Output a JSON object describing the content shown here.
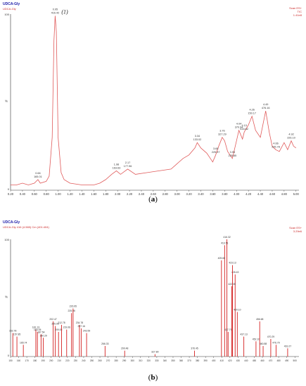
{
  "chart_data": [
    {
      "type": "line",
      "header": {
        "title": "UDCA-Gly",
        "subtitle": "UDCA-Gly",
        "right_lines": [
          "Scan ES+",
          "TIC",
          "1.41e8"
        ]
      },
      "ylabel": "%",
      "y_top_tick": "100",
      "y_zero_tick": "0",
      "xlim": [
        0.2,
        5.05
      ],
      "ylim": [
        0,
        100
      ],
      "x_ticks": [
        "0.20",
        "0.40",
        "0.60",
        "0.80",
        "1.00",
        "1.20",
        "1.40",
        "1.60",
        "1.80",
        "2.00",
        "2.20",
        "2.40",
        "2.60",
        "2.80",
        "3.00",
        "3.20",
        "3.40",
        "3.60",
        "3.80",
        "4.00",
        "4.20",
        "4.40",
        "4.60",
        "4.80",
        "5.00"
      ],
      "x_tick_values": [
        0.2,
        0.4,
        0.6,
        0.8,
        1.0,
        1.2,
        1.4,
        1.6,
        1.8,
        2.0,
        2.2,
        2.4,
        2.6,
        2.8,
        3.0,
        3.2,
        3.4,
        3.6,
        3.8,
        4.0,
        4.2,
        4.4,
        4.6,
        4.8,
        5.0
      ],
      "peak_marker": "(1)",
      "series": [
        {
          "color": "#e05a5a",
          "x": [
            0.2,
            0.3,
            0.4,
            0.5,
            0.6,
            0.66,
            0.7,
            0.8,
            0.85,
            0.9,
            0.93,
            0.95,
            0.97,
            1.0,
            1.05,
            1.1,
            1.2,
            1.4,
            1.6,
            1.7,
            1.8,
            1.9,
            1.98,
            2.05,
            2.17,
            2.3,
            2.5,
            2.7,
            2.9,
            3.0,
            3.1,
            3.2,
            3.3,
            3.34,
            3.4,
            3.5,
            3.6,
            3.65,
            3.7,
            3.76,
            3.8,
            3.85,
            3.93,
            4.0,
            4.04,
            4.1,
            4.13,
            4.2,
            4.26,
            4.32,
            4.4,
            4.49,
            4.55,
            4.6,
            4.66,
            4.72,
            4.8,
            4.86,
            4.92,
            4.96,
            5.0
          ],
          "values": [
            3,
            3,
            4,
            3,
            4,
            6,
            4,
            5,
            8,
            30,
            85,
            99,
            90,
            30,
            10,
            6,
            4,
            3,
            3,
            4,
            6,
            9,
            11,
            9,
            12,
            9,
            10,
            11,
            12,
            15,
            18,
            20,
            24,
            27,
            24,
            21,
            16,
            20,
            25,
            30,
            28,
            22,
            18,
            28,
            34,
            29,
            33,
            37,
            42,
            34,
            30,
            45,
            33,
            25,
            23,
            22,
            27,
            23,
            28,
            25,
            24
          ]
        }
      ],
      "annotations": [
        {
          "x": 0.66,
          "y": 6,
          "lines": [
            "0.66",
            "165.01"
          ]
        },
        {
          "x": 0.95,
          "y": 99,
          "lines": [
            "0.95",
            "416.42"
          ]
        },
        {
          "x": 1.98,
          "y": 11,
          "lines": [
            "1.98",
            "163.63"
          ]
        },
        {
          "x": 2.17,
          "y": 12,
          "lines": [
            "2.17",
            "177.96"
          ]
        },
        {
          "x": 3.34,
          "y": 27,
          "lines": [
            "3.34",
            "133.02"
          ]
        },
        {
          "x": 3.65,
          "y": 20,
          "lines": [
            "3.65",
            "225.97"
          ]
        },
        {
          "x": 3.76,
          "y": 30,
          "lines": [
            "3.76",
            "327.29"
          ]
        },
        {
          "x": 3.93,
          "y": 18,
          "lines": [
            "3.93",
            "225.85"
          ]
        },
        {
          "x": 4.04,
          "y": 34,
          "lines": [
            "4.04",
            "370.94"
          ]
        },
        {
          "x": 4.13,
          "y": 33,
          "lines": [
            "4.13",
            "416.62"
          ]
        },
        {
          "x": 4.26,
          "y": 42,
          "lines": [
            "4.26",
            "150.17"
          ]
        },
        {
          "x": 4.49,
          "y": 45,
          "lines": [
            "4.49",
            "476.16"
          ]
        },
        {
          "x": 4.66,
          "y": 23,
          "lines": [
            "4.66",
            "225.78"
          ]
        },
        {
          "x": 4.92,
          "y": 28,
          "lines": [
            "4.92",
            "226.10"
          ]
        }
      ]
    },
    {
      "type": "bar",
      "header": {
        "title": "UDCA-Gly",
        "subtitle": "UDCA-Gly 416 (4.565) Cm (401:404)",
        "right_lines": [
          "Scan ES+",
          "3.29e6"
        ]
      },
      "ylabel": "%",
      "y_top_tick": "100",
      "y_zero_tick": "0",
      "xlim": [
        150,
        505
      ],
      "ylim": [
        0,
        100
      ],
      "x_ticks": [
        "150",
        "160",
        "170",
        "180",
        "190",
        "200",
        "210",
        "220",
        "230",
        "240",
        "250",
        "260",
        "270",
        "280",
        "290",
        "300",
        "310",
        "320",
        "330",
        "340",
        "350",
        "360",
        "370",
        "380",
        "390",
        "400",
        "410",
        "420",
        "430",
        "440",
        "450",
        "460",
        "470",
        "480",
        "490",
        "500"
      ],
      "x_tick_values": [
        150,
        160,
        170,
        180,
        190,
        200,
        210,
        220,
        230,
        240,
        250,
        260,
        270,
        280,
        290,
        300,
        310,
        320,
        330,
        340,
        350,
        360,
        370,
        380,
        390,
        400,
        410,
        420,
        430,
        440,
        450,
        460,
        470,
        480,
        490,
        500
      ],
      "color": "#d42020",
      "peaks": [
        {
          "x": 152.78,
          "y": 20,
          "label": "152.78"
        },
        {
          "x": 157.85,
          "y": 17,
          "label": "157.85"
        },
        {
          "x": 165.74,
          "y": 10,
          "label": "165.74"
        },
        {
          "x": 181.13,
          "y": 23,
          "label": "181.13"
        },
        {
          "x": 183.05,
          "y": 21,
          "label": "183.05"
        },
        {
          "x": 187.54,
          "y": 19,
          "label": "187.54"
        },
        {
          "x": 190.29,
          "y": 16,
          "label": "190.29"
        },
        {
          "x": 202.47,
          "y": 30,
          "label": "202.47"
        },
        {
          "x": 205.06,
          "y": 26,
          "label": "205.06"
        },
        {
          "x": 209.05,
          "y": 21,
          "label": "209.05"
        },
        {
          "x": 212.78,
          "y": 27,
          "label": "212.78"
        },
        {
          "x": 219.06,
          "y": 23,
          "label": "219.06"
        },
        {
          "x": 225.06,
          "y": 37,
          "label": "225.06"
        },
        {
          "x": 226.95,
          "y": 41,
          "label": "226.95"
        },
        {
          "x": 234.78,
          "y": 27,
          "label": "234.78"
        },
        {
          "x": 237.16,
          "y": 24,
          "label": "237.16"
        },
        {
          "x": 243.59,
          "y": 20,
          "label": "243.59"
        },
        {
          "x": 266.33,
          "y": 9,
          "label": "266.33"
        },
        {
          "x": 290.48,
          "y": 5,
          "label": "290.48"
        },
        {
          "x": 327.8,
          "y": 2,
          "label": "327.80"
        },
        {
          "x": 376.45,
          "y": 5,
          "label": "376.45"
        },
        {
          "x": 416.32,
          "y": 100,
          "label": "416.32"
        },
        {
          "x": 413.51,
          "y": 95,
          "label": "413.51"
        },
        {
          "x": 409.6,
          "y": 82,
          "label": "409.60"
        },
        {
          "x": 417.79,
          "y": 21,
          "label": "417.79"
        },
        {
          "x": 426.43,
          "y": 70,
          "label": "426.43"
        },
        {
          "x": 422.35,
          "y": 60,
          "label": "422.35"
        },
        {
          "x": 423.13,
          "y": 78,
          "label": "423.13"
        },
        {
          "x": 429.1,
          "y": 38,
          "label": "429.10"
        },
        {
          "x": 437.13,
          "y": 17,
          "label": "437.13"
        },
        {
          "x": 452.1,
          "y": 13,
          "label": "452.10"
        },
        {
          "x": 456.68,
          "y": 30,
          "label": "456.68"
        },
        {
          "x": 460.88,
          "y": 9,
          "label": "460.88"
        },
        {
          "x": 470.29,
          "y": 15,
          "label": "470.29"
        },
        {
          "x": 476.79,
          "y": 10,
          "label": "476.79"
        },
        {
          "x": 491.07,
          "y": 7,
          "label": "491.07"
        }
      ]
    }
  ],
  "captions": {
    "a": "a",
    "b": "b"
  }
}
